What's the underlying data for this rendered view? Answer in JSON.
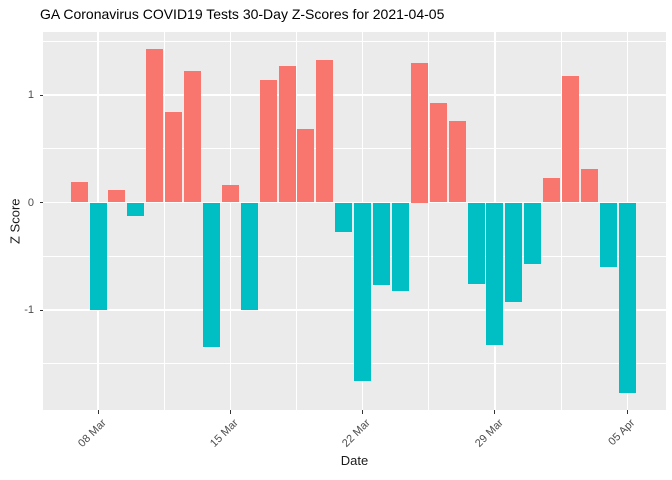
{
  "chart_data": {
    "type": "bar",
    "title": "GA Coronavirus COVID19 Tests 30-Day Z-Scores for 2021-04-05",
    "xlabel": "Date",
    "ylabel": "Z Score",
    "dates": [
      "2021-03-07",
      "2021-03-08",
      "2021-03-09",
      "2021-03-10",
      "2021-03-11",
      "2021-03-12",
      "2021-03-13",
      "2021-03-14",
      "2021-03-15",
      "2021-03-16",
      "2021-03-17",
      "2021-03-18",
      "2021-03-19",
      "2021-03-20",
      "2021-03-21",
      "2021-03-22",
      "2021-03-23",
      "2021-03-24",
      "2021-03-25",
      "2021-03-26",
      "2021-03-27",
      "2021-03-28",
      "2021-03-29",
      "2021-03-30",
      "2021-03-31",
      "2021-04-01",
      "2021-04-02",
      "2021-04-03",
      "2021-04-04",
      "2021-04-05"
    ],
    "values": [
      0.19,
      -1.0,
      0.12,
      -0.13,
      1.43,
      0.84,
      1.22,
      -1.34,
      0.16,
      -1.0,
      1.14,
      1.27,
      0.68,
      1.33,
      -0.27,
      -1.66,
      -0.77,
      -0.82,
      1.3,
      0.93,
      0.76,
      -0.76,
      -1.33,
      -0.93,
      -0.57,
      0.23,
      1.18,
      0.31,
      -0.6,
      -1.77
    ],
    "x_tick_labels": [
      "08 Mar",
      "15 Mar",
      "22 Mar",
      "29 Mar",
      "05 Apr"
    ],
    "x_tick_day_indices": [
      1,
      8,
      15,
      22,
      29
    ],
    "y_major_ticks": [
      "1",
      "0",
      "-1"
    ],
    "y_major_values": [
      1,
      0,
      -1
    ],
    "y_minor_values": [
      1.5,
      0.5,
      -0.5,
      -1.5
    ],
    "ylim": [
      -1.93,
      1.59
    ],
    "grid": true,
    "legend_position": "none",
    "colors": {
      "positive": "#F8766D",
      "negative": "#00BFC4",
      "panel_bg": "#EBEBEB",
      "gridline": "#FFFFFF",
      "axis_text": "#4D4D4D",
      "title_text": "#000000",
      "tick_mark": "#333333"
    }
  }
}
